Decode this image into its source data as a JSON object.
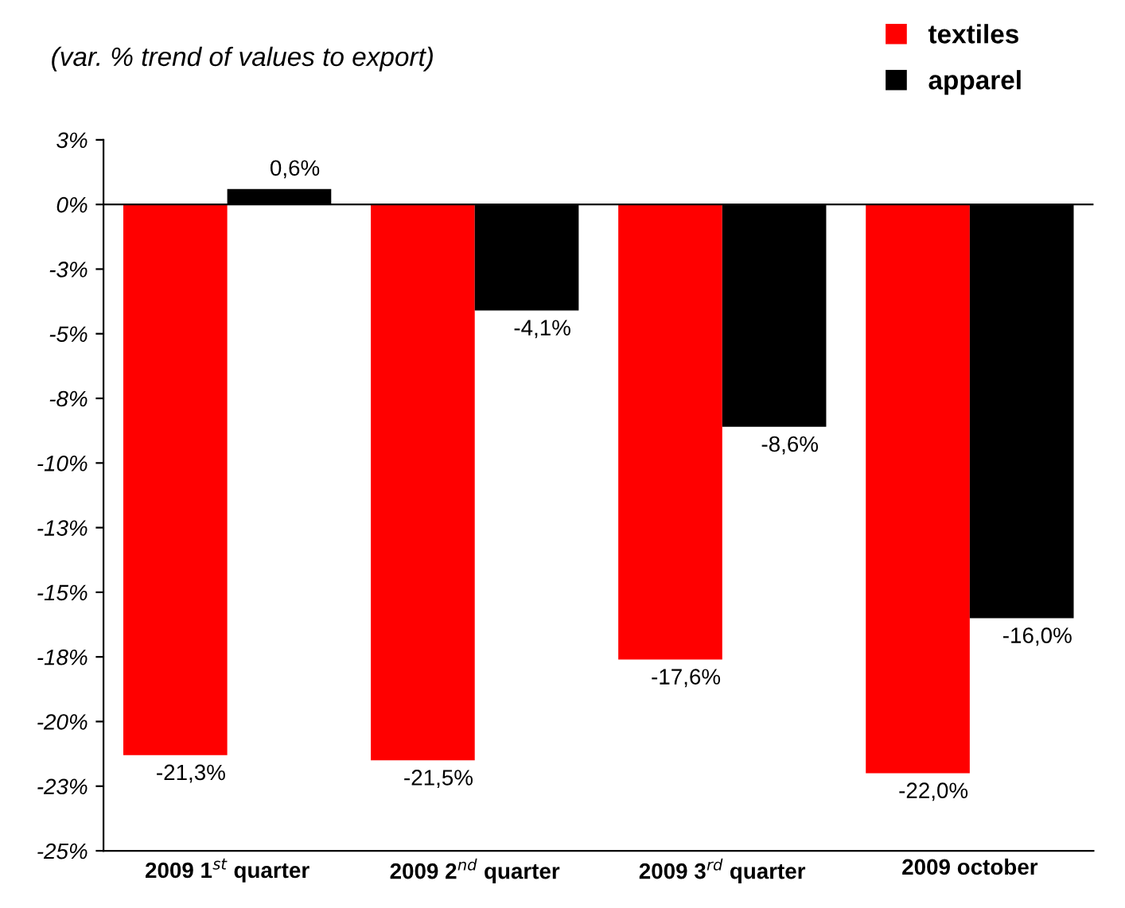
{
  "chart_data": {
    "type": "bar",
    "title": "(var. % trend of values to export)",
    "categories": [
      "2009 1$^{st}$ quarter",
      "2009 2$^{nd}$ quarter",
      "2009 3$^{rd}$ quarter",
      "2009 october"
    ],
    "series": [
      {
        "name": "textiles",
        "color": "#ff0000",
        "values": [
          -21.3,
          -21.5,
          -17.6,
          -22.0
        ],
        "value_labels": [
          "-21,3%",
          "-21,5%",
          "-17,6%",
          "-22,0%"
        ]
      },
      {
        "name": "apparel",
        "color": "#000000",
        "values": [
          0.6,
          -4.1,
          -8.6,
          -16.0
        ],
        "value_labels": [
          "0,6%",
          "-4,1%",
          "-8,6%",
          "-16,0%"
        ]
      }
    ],
    "ylim": [
      -25,
      2.5
    ],
    "yticks": [
      {
        "value": 2.5,
        "label": "3%"
      },
      {
        "value": 0,
        "label": "0%"
      },
      {
        "value": -2.5,
        "label": "-3%"
      },
      {
        "value": -5,
        "label": "-5%"
      },
      {
        "value": -7.5,
        "label": "-8%"
      },
      {
        "value": -10,
        "label": "-10%"
      },
      {
        "value": -12.5,
        "label": "-13%"
      },
      {
        "value": -15,
        "label": "-15%"
      },
      {
        "value": -17.5,
        "label": "-18%"
      },
      {
        "value": -20,
        "label": "-20%"
      },
      {
        "value": -22.5,
        "label": "-23%"
      },
      {
        "value": -25,
        "label": "-25%"
      }
    ],
    "legend": "top right"
  }
}
